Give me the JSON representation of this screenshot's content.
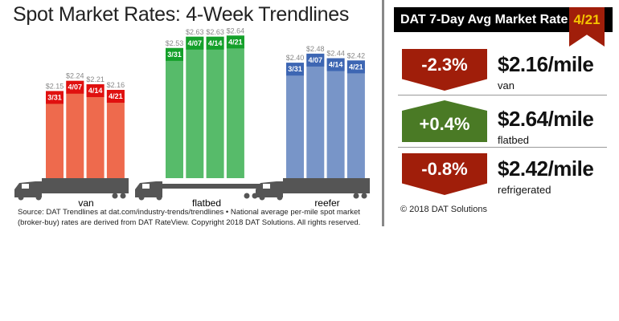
{
  "chart_data": {
    "type": "bar",
    "title": "Spot Market Rates: 4-Week Trendlines",
    "categories": [
      "3/31",
      "4/07",
      "4/14",
      "4/21"
    ],
    "groups": [
      {
        "name": "van",
        "values": [
          2.15,
          2.24,
          2.21,
          2.16
        ],
        "labels": [
          "$2.15",
          "$2.24",
          "$2.21",
          "$2.16"
        ],
        "color": "#ee6a4d",
        "header_color": "#e0100f"
      },
      {
        "name": "flatbed",
        "values": [
          2.53,
          2.63,
          2.63,
          2.64
        ],
        "labels": [
          "$2.53",
          "$2.63",
          "$2.63",
          "$2.64"
        ],
        "color": "#57bb6a",
        "header_color": "#14a02a"
      },
      {
        "name": "reefer",
        "values": [
          2.4,
          2.48,
          2.44,
          2.42
        ],
        "labels": [
          "$2.40",
          "$2.48",
          "$2.44",
          "$2.42"
        ],
        "color": "#7895c8",
        "header_color": "#3d66b3"
      }
    ],
    "source": "Source: DAT Trendlines at dat.com/industry-trends/trendlines • National average per-mile spot market (broker-buy) rates are derived from DAT RateView. Copyright 2018 DAT Solutions. All rights reserved."
  },
  "panel": {
    "header": "DAT 7-Day Avg Market Rate",
    "date": "4/21",
    "rows": [
      {
        "change": "-2.3%",
        "direction": "down",
        "price": "$2.16/mile",
        "type": "van"
      },
      {
        "change": "+0.4%",
        "direction": "up",
        "price": "$2.64/mile",
        "type": "flatbed"
      },
      {
        "change": "-0.8%",
        "direction": "down",
        "price": "$2.42/mile",
        "type": "refrigerated"
      }
    ],
    "copyright": "© 2018 DAT Solutions"
  }
}
